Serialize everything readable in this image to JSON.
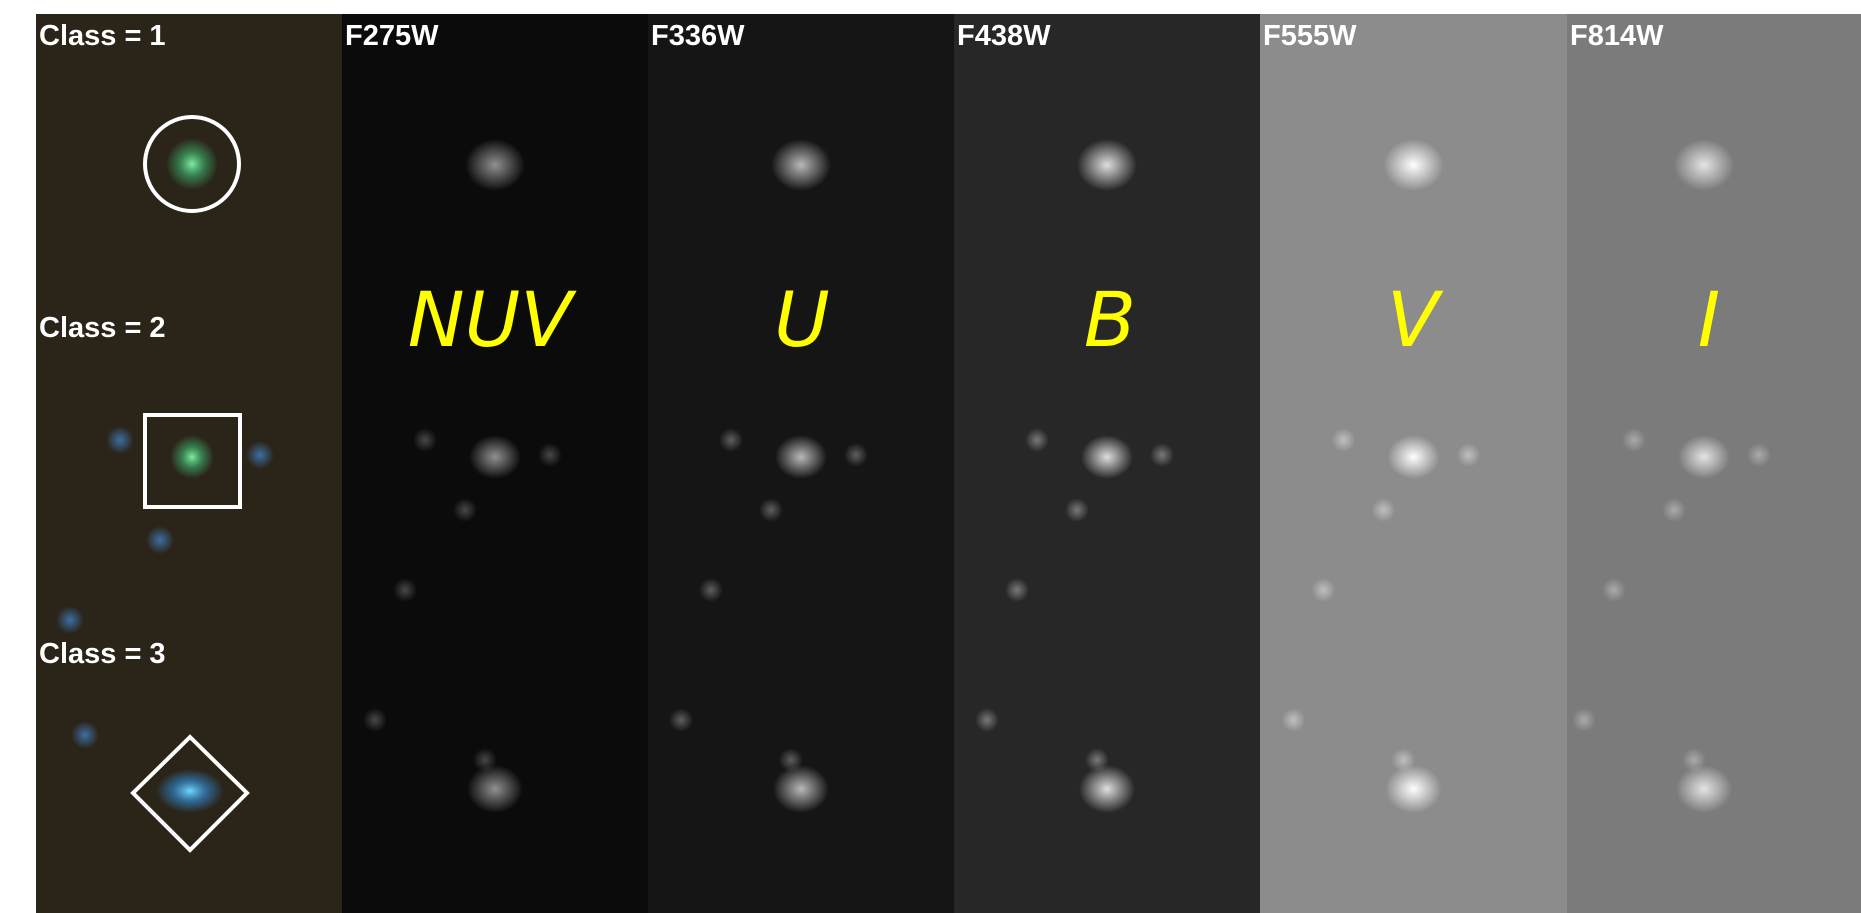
{
  "row_labels": [
    "Class = 1",
    "Class = 2",
    "Class = 3"
  ],
  "filters": [
    "F275W",
    "F336W",
    "F438W",
    "F555W",
    "F814W"
  ],
  "bands": [
    "NUV",
    "U",
    "B",
    "V",
    "I"
  ]
}
